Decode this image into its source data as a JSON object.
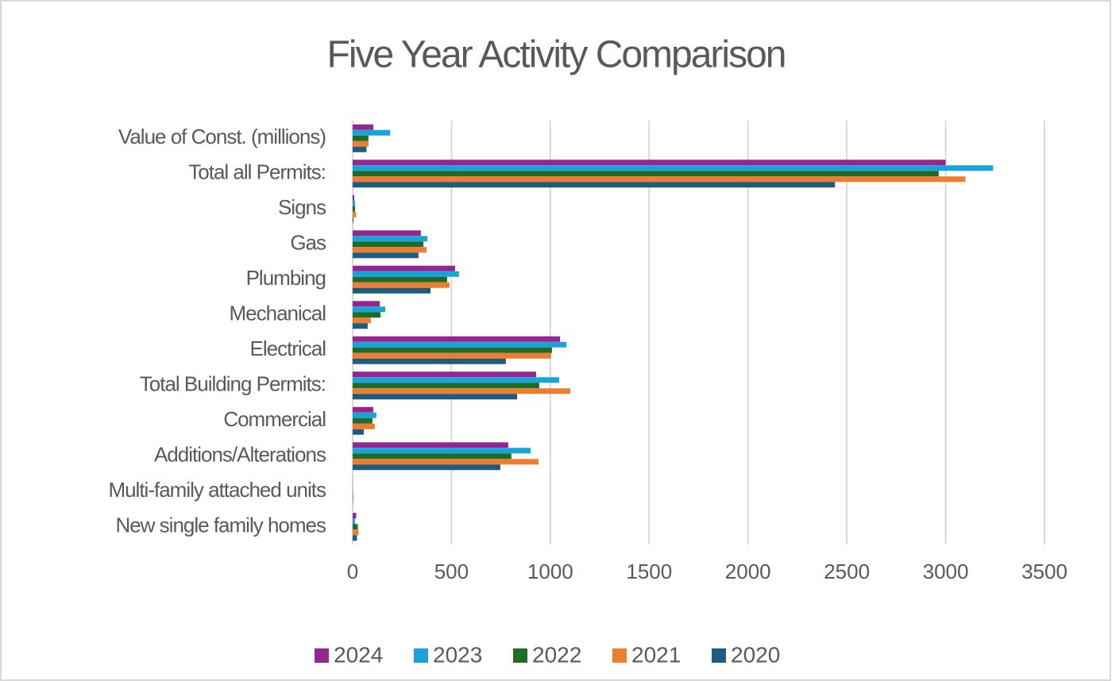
{
  "chart_data": {
    "type": "barh",
    "title": "Five Year Activity Comparison",
    "categories": [
      "Value of Const. (millions)",
      "Total all Permits:",
      "Signs",
      "Gas",
      "Plumbing",
      "Mechanical",
      "Electrical",
      "Total Building Permits:",
      "Commercial",
      "Additions/Alterations",
      "Multi-family attached units",
      "New single family homes"
    ],
    "series": [
      {
        "name": "2024",
        "color": "#93278f",
        "values": [
          105,
          3000,
          8,
          345,
          518,
          137,
          1049,
          928,
          104,
          787,
          1,
          18
        ]
      },
      {
        "name": "2023",
        "color": "#1aa3d9",
        "values": [
          190,
          3240,
          12,
          378,
          538,
          165,
          1081,
          1045,
          120,
          900,
          1,
          12
        ]
      },
      {
        "name": "2022",
        "color": "#1f6b2a",
        "values": [
          80,
          2965,
          12,
          358,
          478,
          141,
          1008,
          944,
          100,
          803,
          1,
          26
        ]
      },
      {
        "name": "2021",
        "color": "#ed7d31",
        "values": [
          80,
          3100,
          18,
          374,
          490,
          92,
          1004,
          1101,
          112,
          940,
          4,
          30
        ]
      },
      {
        "name": "2020",
        "color": "#1d5b7f",
        "values": [
          70,
          2440,
          4,
          333,
          394,
          76,
          775,
          832,
          56,
          747,
          1,
          22
        ]
      }
    ],
    "xlim": [
      0,
      3500
    ],
    "xticks": [
      0,
      500,
      1000,
      1500,
      2000,
      2500,
      3000,
      3500
    ],
    "grid": true,
    "legend": "bottom"
  }
}
